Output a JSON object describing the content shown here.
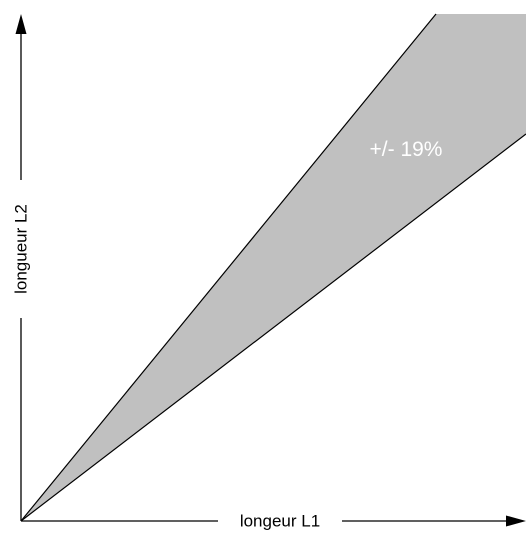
{
  "x_axis": {
    "label": "longeur L1"
  },
  "y_axis": {
    "label": "longueur L2"
  },
  "band": {
    "label": "+/- 19%",
    "tolerance_percent": 19,
    "fill_color": "#c0c0c0"
  },
  "colors": {
    "background": "#ffffff",
    "stroke": "#000000",
    "band_text": "#ffffff"
  }
}
